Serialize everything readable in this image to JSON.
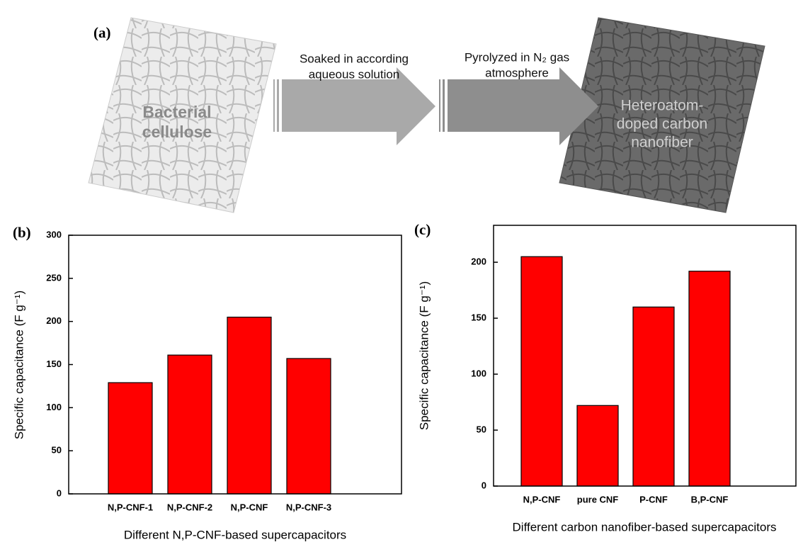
{
  "diagram": {
    "label": "(a)",
    "source": [
      "Bacterial",
      "cellulose"
    ],
    "step1": [
      "Soaked in according",
      "aqueous solution"
    ],
    "step2": [
      "Pyrolyzed  in N₂ gas",
      "atmosphere"
    ],
    "product": [
      "Heteroatom-",
      "doped carbon",
      "nanofiber"
    ]
  },
  "chart_data": [
    {
      "type": "bar",
      "label": "(b)",
      "y_label": "Specific capacitance (F g⁻¹)",
      "x_label": "Different N,P-CNF-based supercapacitors",
      "categories": [
        "N,P-CNF-1",
        "N,P-CNF-2",
        "N,P-CNF",
        "N,P-CNF-3"
      ],
      "values": [
        129,
        161,
        205,
        157
      ],
      "color": "#ff0000",
      "ylim": [
        0,
        300
      ],
      "yticks": [
        0,
        50,
        100,
        150,
        200,
        250,
        300
      ]
    },
    {
      "type": "bar",
      "label": "(c)",
      "y_label": "Specific capacitance (F g⁻¹)",
      "x_label": "Different carbon nanofiber-based supercapacitors",
      "categories": [
        "N,P-CNF",
        "pure CNF",
        "P-CNF",
        "B,P-CNF"
      ],
      "values": [
        205,
        72,
        160,
        192
      ],
      "color": "#ff0000",
      "ylim": [
        0,
        233
      ],
      "yticks": [
        0,
        50,
        100,
        150,
        200
      ]
    }
  ]
}
